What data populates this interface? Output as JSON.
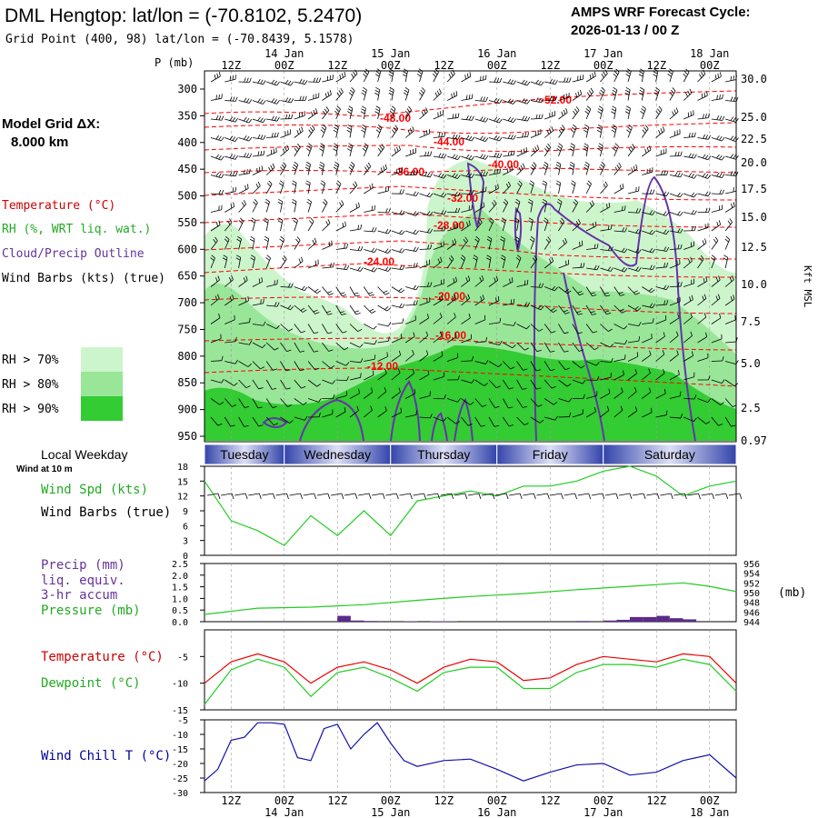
{
  "header": {
    "title": "DML Hengtop:  lat/lon = (-70.8102, 5.2470)",
    "subtitle": "Grid Point (400, 98) lat/lon = (-70.8439, 5.1578)",
    "cycle_title": "AMPS WRF Forecast Cycle:",
    "cycle_value": "2026-01-13 / 00  Z"
  },
  "legend": {
    "grid_label": "Model Grid ΔX:",
    "grid_value": "8.000 km",
    "temperature": "Temperature (°C)",
    "rh": "RH (%, WRT liq. wat.)",
    "cloud": "Cloud/Precip Outline",
    "wind": "Wind Barbs (kts) (true)",
    "rh70": "RH > 70%",
    "rh80": "RH > 80%",
    "rh90": "RH > 90%",
    "colors": {
      "rh70": "#ccf5cc",
      "rh80": "#99e699",
      "rh90": "#33cc33",
      "temp": "#ff0000",
      "cloud": "#6633aa",
      "wind": "#000000"
    }
  },
  "time_axis": {
    "hour_ticks": [
      "12Z",
      "00Z",
      "12Z",
      "00Z",
      "12Z",
      "00Z",
      "12Z",
      "00Z",
      "12Z",
      "00Z"
    ],
    "date_ticks": [
      "14 Jan",
      "15 Jan",
      "16 Jan",
      "17 Jan",
      "18 Jan"
    ],
    "weekdays_label": "Local Weekday",
    "weekdays": [
      "Tuesday",
      "Wednesday",
      "Thursday",
      "Friday",
      "Saturday"
    ]
  },
  "chart_data": [
    {
      "type": "heatmap",
      "ylabel": "P (mb)",
      "ylabel_right": "Kft MSL",
      "pressure_ticks": [
        300,
        350,
        400,
        450,
        500,
        550,
        600,
        650,
        700,
        750,
        800,
        850,
        900,
        950
      ],
      "kft_ticks": [
        "30.0",
        "25.0",
        "22.5",
        "20.0",
        "17.5",
        "15.0",
        "12.5",
        "10.0",
        "7.5",
        "5.0",
        "2.5",
        "0.97"
      ],
      "temperature_labels": [
        "-52.00",
        "-48.00",
        "-44.00",
        "-40.00",
        "-36.00",
        "-32.00",
        "-28.00",
        "-24.00",
        "-20.00",
        "-16.00",
        "-12.00"
      ],
      "forecast_hours": [
        0,
        120
      ]
    },
    {
      "type": "line",
      "title": "Wind at 10 m",
      "labels": [
        "Wind Spd (kts)",
        "Wind Barbs (true)"
      ],
      "y_ticks": [
        "18",
        "15",
        "12",
        "9",
        "6",
        "3",
        "0"
      ],
      "ylim": [
        0,
        18
      ],
      "series": [
        {
          "name": "Wind Spd (kts)",
          "x": [
            0,
            6,
            12,
            18,
            24,
            30,
            36,
            42,
            48,
            54,
            60,
            66,
            72,
            78,
            84,
            90,
            96,
            102,
            108,
            114,
            120
          ],
          "values": [
            15,
            7,
            5,
            2,
            8,
            4,
            9,
            4,
            11,
            12,
            13,
            12,
            14,
            14,
            15,
            17,
            18,
            16,
            12,
            14,
            15
          ]
        }
      ]
    },
    {
      "type": "line",
      "labels": [
        "Precip (mm)",
        "liq. equiv.",
        "3-hr accum",
        "Pressure (mb)"
      ],
      "y_ticks": [
        "2.5",
        "2.0",
        "1.5",
        "1.0",
        "0.5",
        "0.0"
      ],
      "y2_ticks": [
        "956",
        "954",
        "952",
        "950",
        "948",
        "946",
        "944"
      ],
      "y2_unit": "(mb)",
      "ylim": [
        0,
        2.5
      ],
      "y2lim": [
        944,
        956
      ],
      "pressure": {
        "x": [
          0,
          12,
          24,
          36,
          48,
          60,
          72,
          84,
          96,
          108,
          114,
          120
        ],
        "values": [
          945.5,
          946.8,
          947.0,
          947.5,
          948.4,
          949.2,
          949.8,
          950.6,
          951.3,
          952.0,
          951.3,
          950.2
        ]
      },
      "precip": {
        "x": [
          30,
          33,
          36,
          45,
          51,
          54,
          84,
          90,
          93,
          96,
          99,
          102,
          105,
          108
        ],
        "values": [
          0.25,
          0.05,
          0.03,
          0.02,
          0.02,
          0.02,
          0.03,
          0.05,
          0.08,
          0.2,
          0.2,
          0.25,
          0.15,
          0.1
        ]
      }
    },
    {
      "type": "line",
      "labels": [
        "Temperature (°C)",
        "Dewpoint (°C)"
      ],
      "y_ticks": [
        "-5",
        "-10",
        "-15"
      ],
      "ylim": [
        -15,
        0
      ],
      "series": [
        {
          "name": "Temperature (°C)",
          "x": [
            0,
            6,
            12,
            18,
            24,
            30,
            36,
            42,
            48,
            54,
            60,
            66,
            72,
            78,
            84,
            90,
            96,
            102,
            108,
            114,
            120
          ],
          "values": [
            -10,
            -6,
            -4.5,
            -6,
            -10,
            -7,
            -6,
            -7.5,
            -10,
            -7,
            -5.5,
            -6,
            -9.5,
            -9,
            -6.5,
            -5,
            -5.5,
            -6,
            -4.5,
            -5,
            -10
          ]
        },
        {
          "name": "Dewpoint (°C)",
          "x": [
            0,
            6,
            12,
            18,
            24,
            30,
            36,
            42,
            48,
            54,
            60,
            66,
            72,
            78,
            84,
            90,
            96,
            102,
            108,
            114,
            120
          ],
          "values": [
            -14,
            -7.5,
            -5.5,
            -7,
            -12.5,
            -8,
            -7,
            -9,
            -11.5,
            -8,
            -7,
            -7,
            -11,
            -11,
            -8,
            -6.5,
            -6.5,
            -7,
            -5.5,
            -6.5,
            -11.5
          ]
        }
      ]
    },
    {
      "type": "line",
      "labels": [
        "Wind Chill T (°C)"
      ],
      "y_ticks": [
        "-5",
        "-10",
        "-15",
        "-20",
        "-25",
        "-30"
      ],
      "ylim": [
        -30,
        -5
      ],
      "series": [
        {
          "name": "Wind Chill T (°C)",
          "x": [
            0,
            3,
            6,
            9,
            12,
            15,
            18,
            21,
            24,
            27,
            30,
            33,
            36,
            39,
            42,
            45,
            48,
            54,
            60,
            66,
            72,
            78,
            84,
            90,
            96,
            102,
            108,
            114,
            120
          ],
          "values": [
            -26,
            -22,
            -12,
            -11,
            -6,
            -6,
            -6.5,
            -18,
            -19,
            -8,
            -6.5,
            -15,
            -10,
            -6,
            -13,
            -19,
            -21,
            -19,
            -18.5,
            -22,
            -26,
            -23,
            -20.5,
            -20,
            -24,
            -23,
            -19,
            -17,
            -25
          ]
        }
      ]
    }
  ]
}
